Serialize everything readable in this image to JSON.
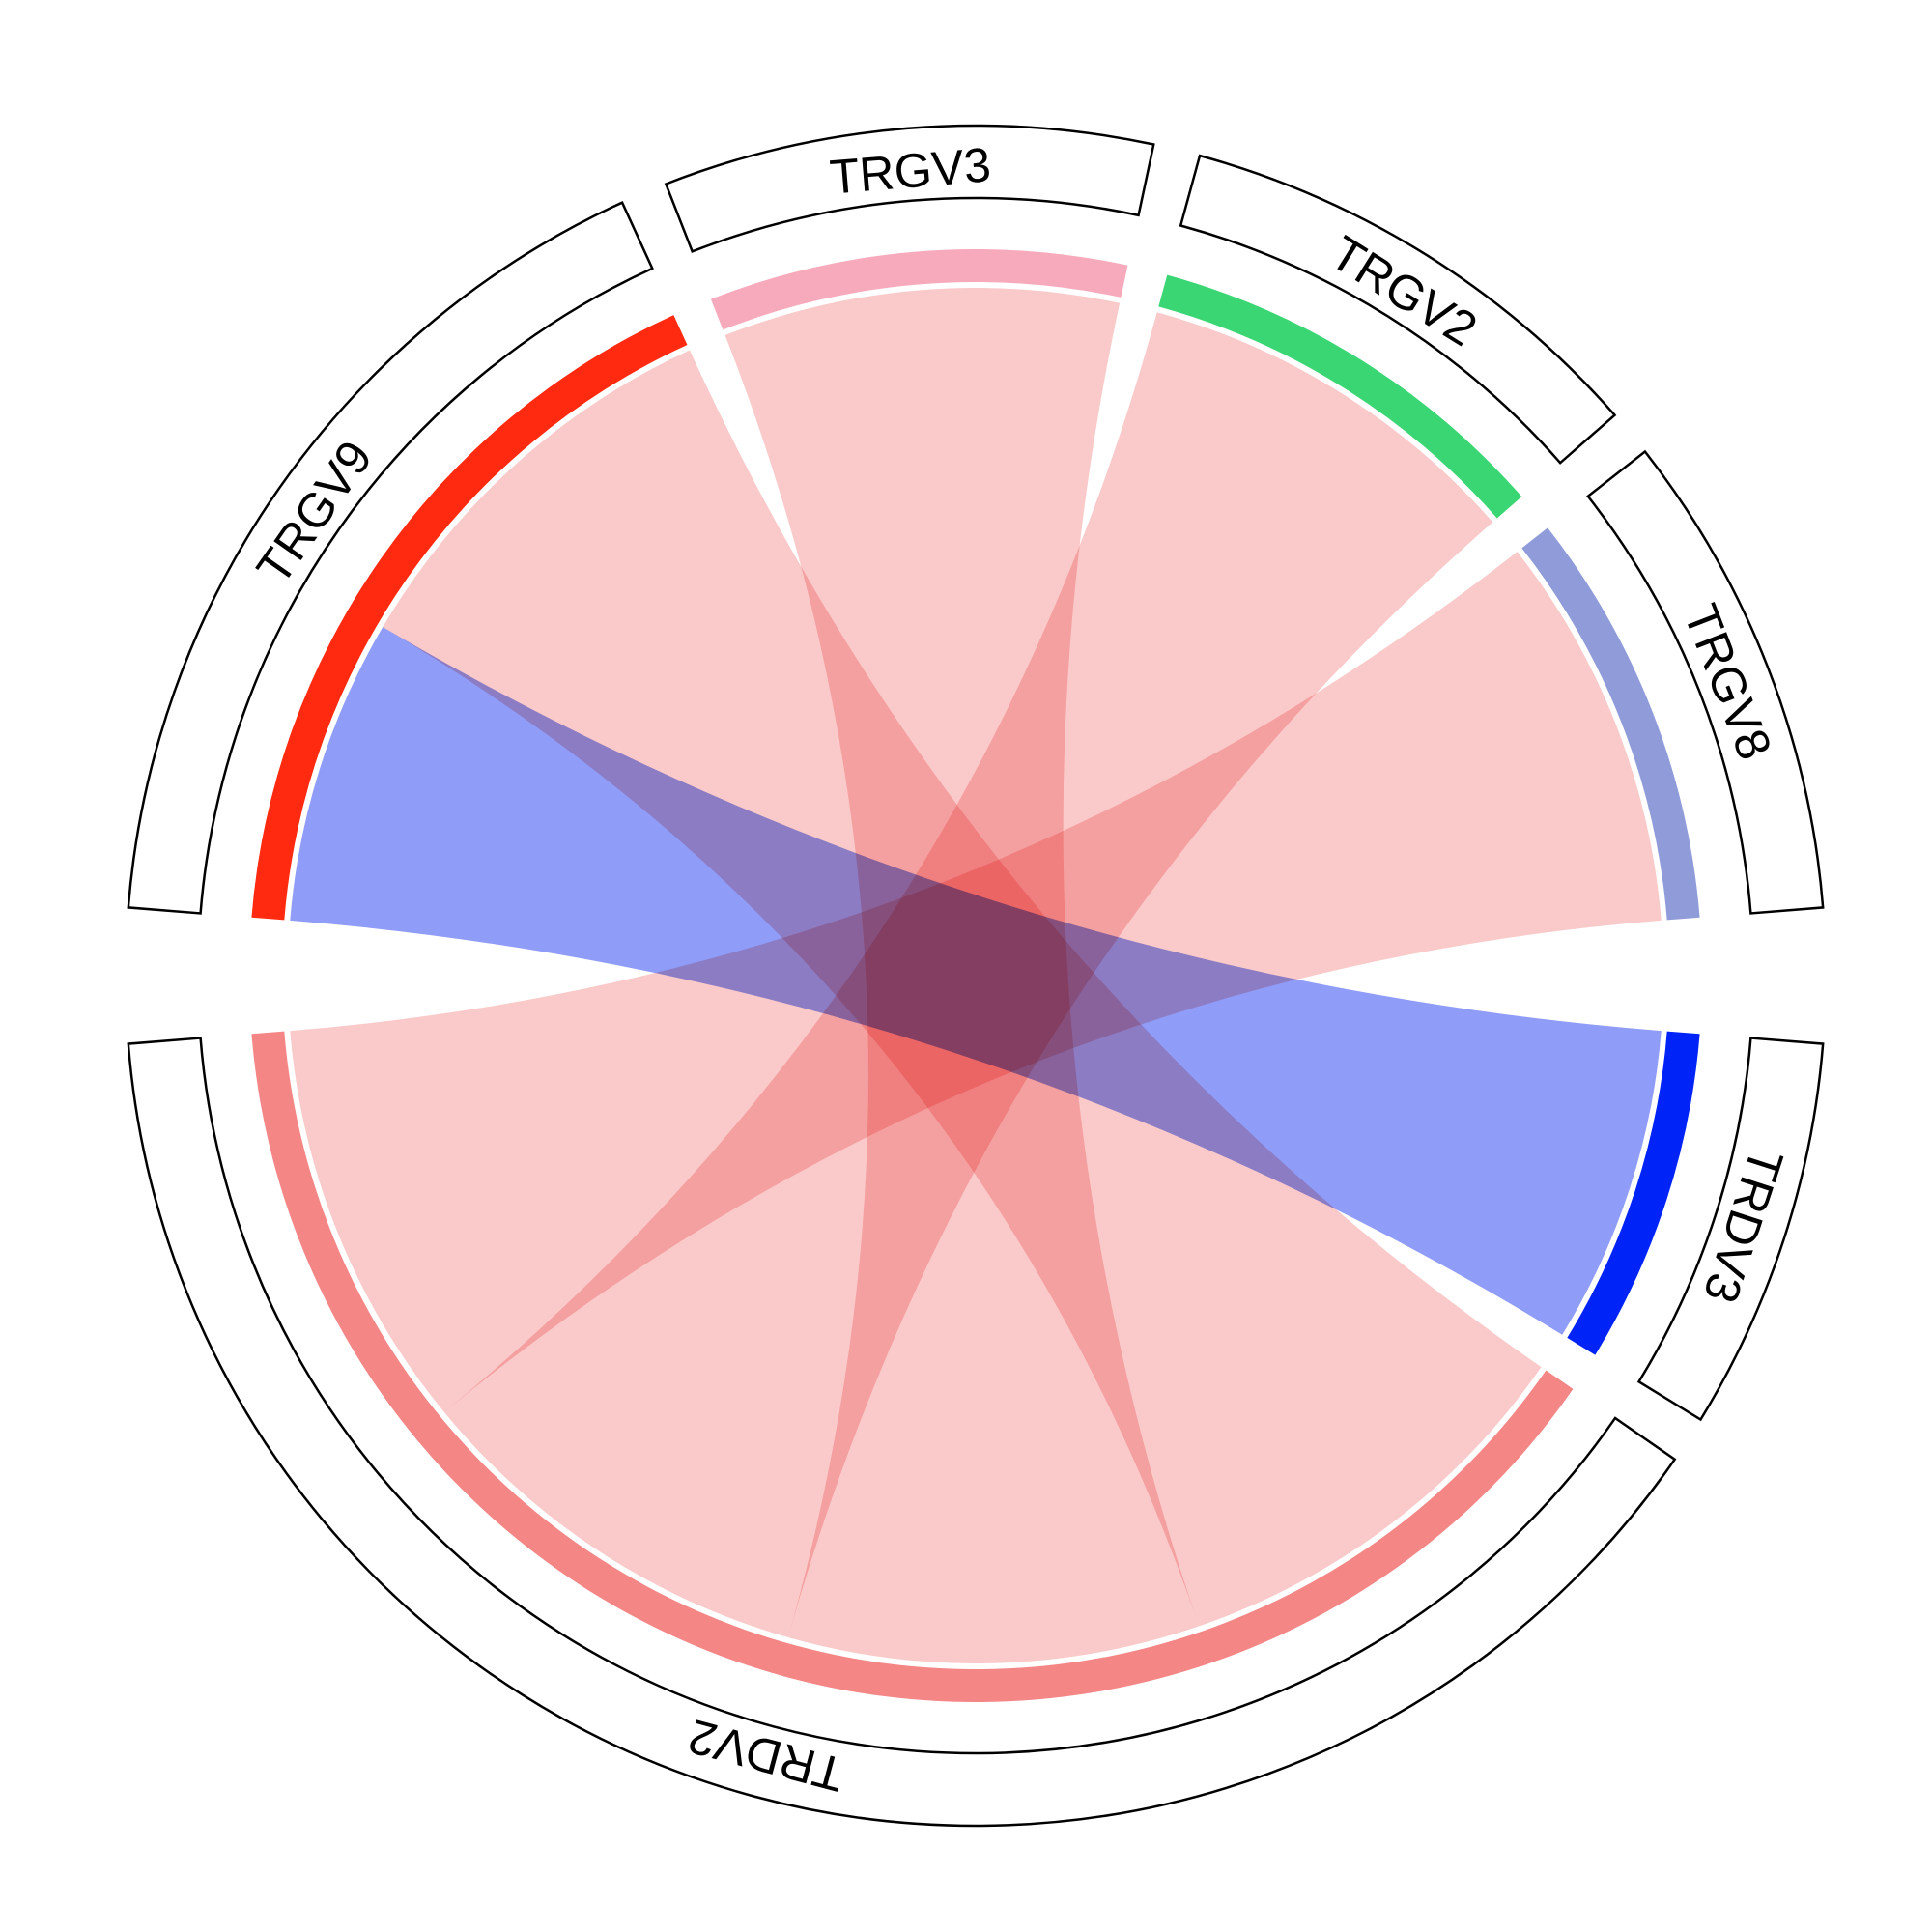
{
  "chart_data": {
    "type": "chord",
    "title": "",
    "sectors": [
      {
        "name": "TRGV9",
        "group": "gamma",
        "total": 40,
        "color": "#ff2a0f"
      },
      {
        "name": "TRGV3",
        "group": "gamma",
        "total": 22,
        "color": "#f7aabb"
      },
      {
        "name": "TRGV2",
        "group": "gamma",
        "total": 22,
        "color": "#3bd674"
      },
      {
        "name": "TRGV8",
        "group": "gamma",
        "total": 22,
        "color": "#8f9cd9"
      },
      {
        "name": "TRDV3",
        "group": "delta",
        "total": 17,
        "color": "#0024f7"
      },
      {
        "name": "TRDV2",
        "group": "delta",
        "total": 89,
        "color": "#f48686"
      }
    ],
    "links": [
      {
        "from": "TRGV9",
        "to": "TRDV3",
        "value": 17,
        "color": "#8391f7"
      },
      {
        "from": "TRGV9",
        "to": "TRDV2",
        "value": 23,
        "color": "#f9c4c4"
      },
      {
        "from": "TRGV3",
        "to": "TRDV2",
        "value": 22,
        "color": "#f9c4c4"
      },
      {
        "from": "TRGV2",
        "to": "TRDV2",
        "value": 22,
        "color": "#f9c4c4"
      },
      {
        "from": "TRGV8",
        "to": "TRDV2",
        "value": 22,
        "color": "#f9c4c4"
      }
    ]
  }
}
